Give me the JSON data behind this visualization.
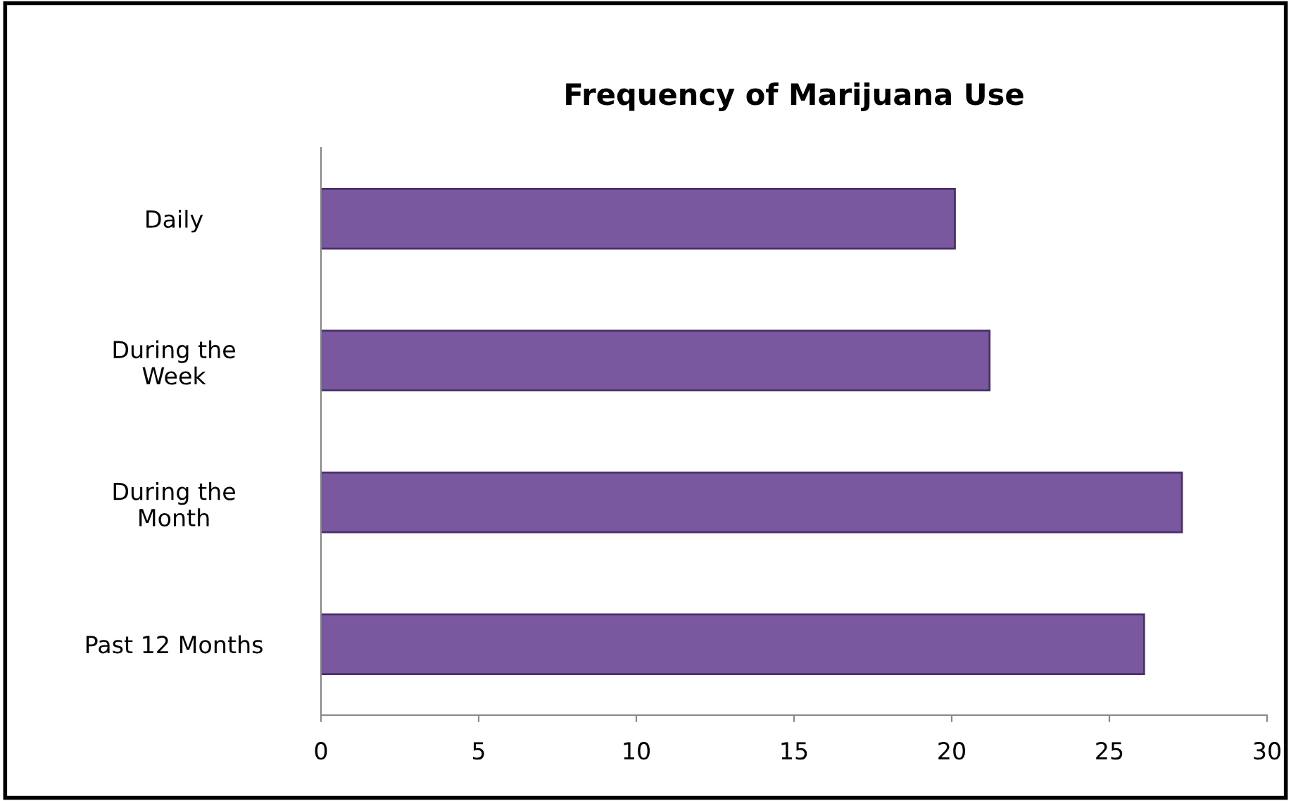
{
  "chart_data": {
    "type": "bar",
    "orientation": "horizontal",
    "title": "Frequency of Marijuana Use",
    "categories": [
      "Daily",
      "During the\nWeek",
      "During the\nMonth",
      "Past 12 Months"
    ],
    "values": [
      20.1,
      21.2,
      27.3,
      26.1
    ],
    "color": "#7a58a0",
    "xlim": [
      0,
      30
    ],
    "xticks": [
      0,
      5,
      10,
      15,
      20,
      25,
      30
    ],
    "grid": false
  }
}
